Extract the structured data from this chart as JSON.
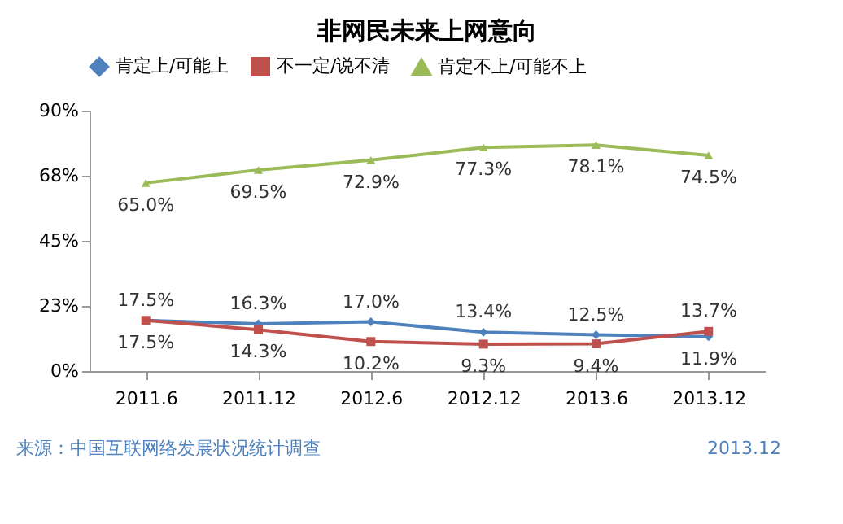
{
  "chart_data": {
    "type": "line",
    "title": "非网民未来上网意向",
    "categories": [
      "2011.6",
      "2011.12",
      "2012.6",
      "2012.12",
      "2013.6",
      "2013.12"
    ],
    "series": [
      {
        "name": "肯定上/可能上",
        "color": "#4f81bd",
        "marker": "diamond",
        "values": [
          17.5,
          16.3,
          17.0,
          13.4,
          12.5,
          11.9
        ],
        "value_labels": [
          "17.5%",
          "16.3%",
          "17.0%",
          "13.4%",
          "12.5%",
          "11.9%"
        ]
      },
      {
        "name": "不一定/说不清",
        "color": "#c0504d",
        "marker": "square",
        "values": [
          17.5,
          14.3,
          10.2,
          9.3,
          9.4,
          13.7
        ],
        "value_labels": [
          "17.5%",
          "14.3%",
          "10.2%",
          "9.3%",
          "9.4%",
          "13.7%"
        ]
      },
      {
        "name": "肯定不上/可能不上",
        "color": "#9bbb59",
        "marker": "triangle",
        "values": [
          65.0,
          69.5,
          72.9,
          77.3,
          78.1,
          74.5
        ],
        "value_labels": [
          "65.0%",
          "69.5%",
          "72.9%",
          "77.3%",
          "78.1%",
          "74.5%"
        ]
      }
    ],
    "ylim": [
      0,
      90
    ],
    "yticks": [
      {
        "value": 0,
        "label": "0%"
      },
      {
        "value": 22.5,
        "label": "23%"
      },
      {
        "value": 45,
        "label": "45%"
      },
      {
        "value": 67.5,
        "label": "68%"
      },
      {
        "value": 90,
        "label": "90%"
      }
    ],
    "grid": false,
    "legend": "top",
    "annotations": [
      "来源：中国互联网络发展状况统计调查",
      "2013.12"
    ]
  }
}
